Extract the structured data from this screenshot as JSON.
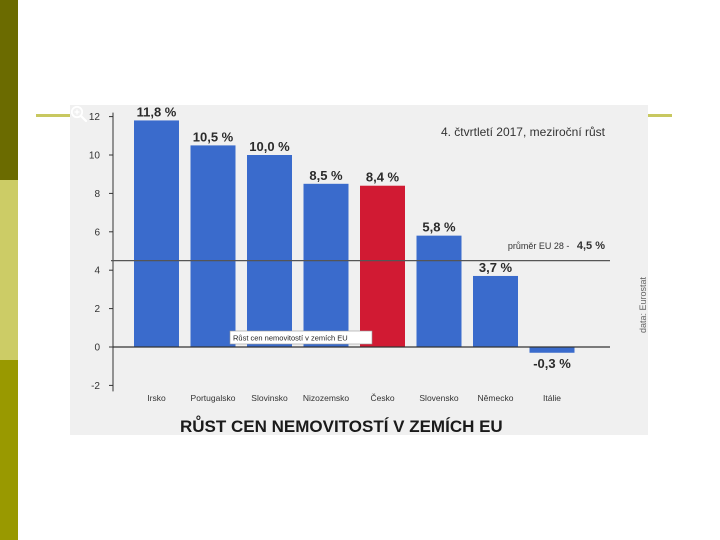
{
  "colors": {
    "bar_default": "#3a6bcc",
    "bar_highlight": "#d11a33",
    "avg_line": "#555555",
    "axis": "#333333",
    "side_top": "#6b6b00",
    "side_mid": "#cccc66",
    "side_bottom": "#999900",
    "decor_line": "#c8c860"
  },
  "icons": {
    "zoom": "zoom-in-icon"
  },
  "tooltip": "Růst cen nemovitostí v zemích EU",
  "chart_data": {
    "type": "bar",
    "title": "RŮST CEN NEMOVITOSTÍ V ZEMÍCH EU",
    "subtitle": "4. čtvrtletí 2017, meziroční růst",
    "source": "data: Eurostat",
    "categories": [
      "Irsko",
      "Portugalsko",
      "Slovinsko",
      "Nizozemsko",
      "Česko",
      "Slovensko",
      "Německo",
      "Itálie"
    ],
    "values": [
      11.8,
      10.5,
      10.0,
      8.5,
      8.4,
      5.8,
      3.7,
      -0.3
    ],
    "value_labels": [
      "11,8 %",
      "10,5 %",
      "10,0 %",
      "8,5 %",
      "8,4 %",
      "5,8 %",
      "3,7 %",
      "-0,3 %"
    ],
    "highlight": "Česko",
    "yticks": [
      -2,
      0,
      2,
      4,
      6,
      8,
      10,
      12
    ],
    "ylim": [
      -2,
      12
    ],
    "reference_line": {
      "value": 4.5,
      "label": "průměr EU 28 -",
      "value_label": "4,5 %"
    },
    "xlabel": "",
    "ylabel": "",
    "grid": false
  }
}
